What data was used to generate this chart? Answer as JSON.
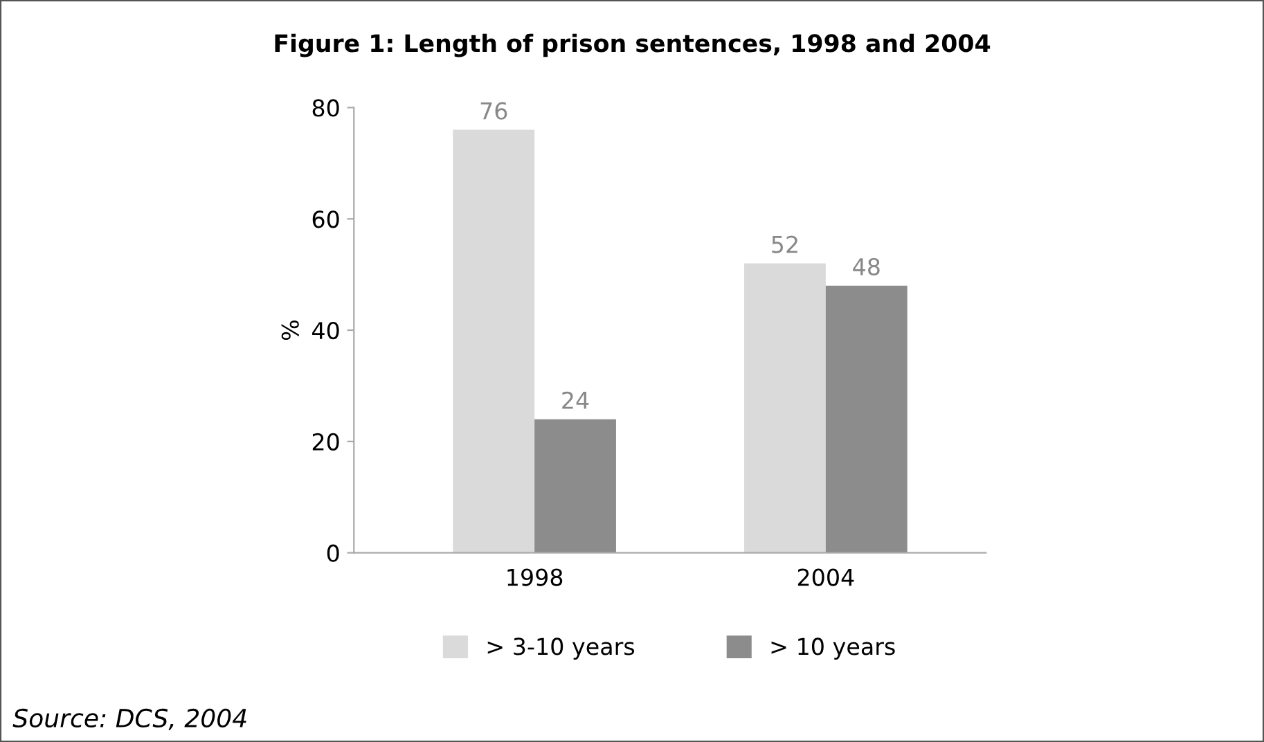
{
  "chart_data": {
    "type": "bar",
    "title": "Figure 1: Length of prison sentences, 1998 and 2004",
    "ylabel": "%",
    "categories": [
      "1998",
      "2004"
    ],
    "series": [
      {
        "name": "> 3-10 years",
        "color": "#dadada",
        "values": [
          76,
          52
        ]
      },
      {
        "name": "> 10 years",
        "color": "#8c8c8c",
        "values": [
          24,
          48
        ]
      }
    ],
    "ylim": [
      0,
      80
    ],
    "yticks": [
      0,
      20,
      40,
      60,
      80
    ],
    "grid": false,
    "legend": "bottom",
    "data_labels": true,
    "annotations": [
      "Source: DCS, 2004"
    ]
  }
}
